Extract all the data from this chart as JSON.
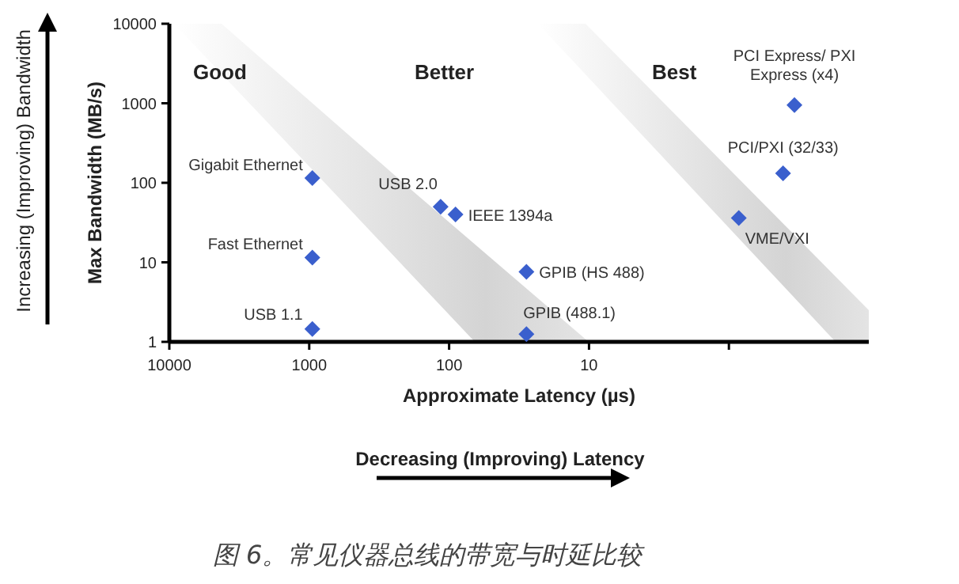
{
  "chart_data": {
    "type": "scatter",
    "xlabel": "Approximate Latency (µs)",
    "ylabel": "Max Bandwidth (MB/s)",
    "log": "xy",
    "xlim": [
      10000,
      0.1
    ],
    "xticks": [
      10000,
      1000,
      100,
      10,
      {
        "value": 1,
        "label": null
      }
    ],
    "ylim": [
      1,
      10000
    ],
    "yticks": [
      1,
      10,
      100,
      1000,
      10000
    ],
    "marker": "diamond",
    "legend": false,
    "grid": false,
    "annotations": [
      "Good",
      "Better",
      "Best",
      "Increasing (Improving) Bandwidth",
      "Decreasing (Improving) Latency",
      "图 6。常见仪器总线的带宽与时延比较"
    ],
    "series": [
      {
        "name": "Gigabit Ethernet",
        "color": "#3a5fcd",
        "x": [
          950
        ],
        "values": [
          115
        ]
      },
      {
        "name": "Fast Ethernet",
        "color": "#3a5fcd",
        "x": [
          950
        ],
        "values": [
          11.5
        ]
      },
      {
        "name": "USB 1.1",
        "color": "#3a5fcd",
        "x": [
          950
        ],
        "values": [
          1.45
        ]
      },
      {
        "name": "USB 2.0",
        "color": "#3a5fcd",
        "x": [
          115
        ],
        "values": [
          50
        ]
      },
      {
        "name": "IEEE 1394a",
        "color": "#3a5fcd",
        "x": [
          90
        ],
        "values": [
          40
        ]
      },
      {
        "name": "GPIB (HS 488)",
        "color": "#3a5fcd",
        "x": [
          28
        ],
        "values": [
          7.6
        ]
      },
      {
        "name": "GPIB (488.1)",
        "color": "#3a5fcd",
        "x": [
          28
        ],
        "values": [
          1.25
        ]
      },
      {
        "name": "VME/VXI",
        "color": "#3a5fcd",
        "x": [
          0.85
        ],
        "values": [
          36
        ]
      },
      {
        "name": "PCI/PXI (32/33)",
        "color": "#3a5fcd",
        "x": [
          0.41
        ],
        "values": [
          132
        ]
      },
      {
        "name": "PCI Express/ PXI Express (x4)",
        "color": "#3a5fcd",
        "x": [
          0.34
        ],
        "values": [
          950
        ]
      }
    ]
  }
}
